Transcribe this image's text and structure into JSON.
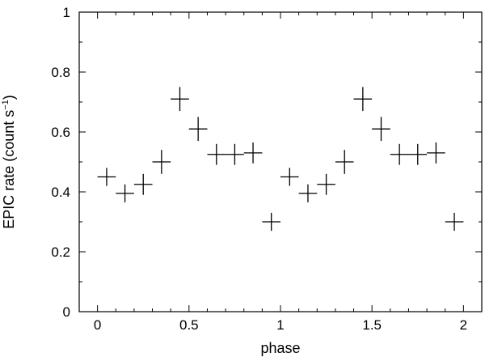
{
  "chart_data": {
    "type": "scatter",
    "xlabel": "phase",
    "ylabel_main": "EPIC rate (count s",
    "ylabel_sup": "−1",
    "ylabel_close": ")",
    "xlim": [
      -0.1,
      2.1
    ],
    "ylim": [
      0,
      1
    ],
    "x_ticks": [
      0,
      0.5,
      1,
      1.5,
      2
    ],
    "x_tick_labels": [
      "0",
      "0.5",
      "1",
      "1.5",
      "2"
    ],
    "y_ticks": [
      0,
      0.2,
      0.4,
      0.6,
      0.8,
      1
    ],
    "y_tick_labels": [
      "0",
      "0.2",
      "0.4",
      "0.6",
      "0.8",
      "1"
    ],
    "grid": false,
    "series": [
      {
        "x": [
          0.05,
          0.15,
          0.25,
          0.35,
          0.45,
          0.55,
          0.65,
          0.75,
          0.85,
          0.95,
          1.05,
          1.15,
          1.25,
          1.35,
          1.45,
          1.55,
          1.65,
          1.75,
          1.85,
          1.95
        ],
        "y": [
          0.45,
          0.395,
          0.425,
          0.5,
          0.71,
          0.61,
          0.525,
          0.525,
          0.53,
          0.3,
          0.45,
          0.395,
          0.425,
          0.5,
          0.71,
          0.61,
          0.525,
          0.525,
          0.53,
          0.3
        ],
        "xerr": 0.05,
        "yerr": [
          0.03,
          0.03,
          0.035,
          0.04,
          0.04,
          0.04,
          0.035,
          0.035,
          0.035,
          0.03,
          0.03,
          0.03,
          0.035,
          0.04,
          0.04,
          0.04,
          0.035,
          0.035,
          0.035,
          0.03
        ]
      }
    ]
  }
}
